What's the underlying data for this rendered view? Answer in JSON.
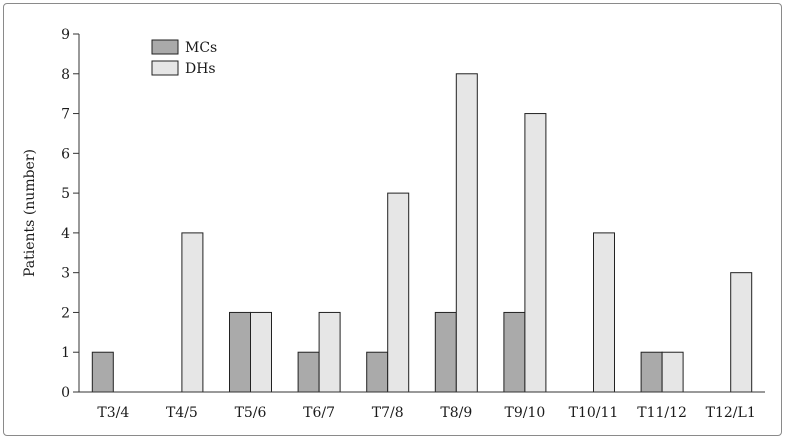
{
  "chart_data": {
    "type": "bar",
    "title": "",
    "xlabel": "",
    "ylabel": "Patients (number)",
    "ylim": [
      0,
      9
    ],
    "yticks": [
      0,
      1,
      2,
      3,
      4,
      5,
      6,
      7,
      8,
      9
    ],
    "categories": [
      "T3/4",
      "T4/5",
      "T5/6",
      "T6/7",
      "T7/8",
      "T8/9",
      "T9/10",
      "T10/11",
      "T11/12",
      "T12/L1"
    ],
    "series": [
      {
        "name": "MCs",
        "values": [
          1,
          0,
          2,
          1,
          1,
          2,
          2,
          0,
          1,
          0
        ],
        "color": "#aaaaaa"
      },
      {
        "name": "DHs",
        "values": [
          0,
          4,
          2,
          2,
          5,
          8,
          7,
          4,
          1,
          3
        ],
        "color": "#e6e6e6"
      }
    ],
    "legend_position": "top-left",
    "grid": false
  }
}
